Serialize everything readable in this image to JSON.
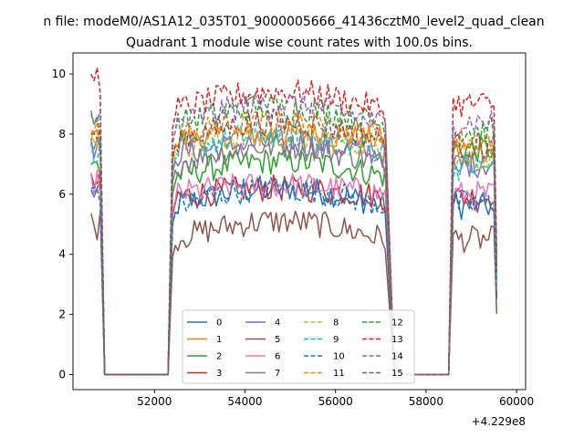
{
  "suptitle": "n file: modeM0/AS1A12_035T01_9000005666_41436cztM0_level2_quad_clean",
  "chart_data": {
    "type": "line",
    "title": "Quadrant 1 module wise count rates with 100.0s bins.",
    "x_offset_label": "+4.229e8",
    "xlim": [
      50200,
      60200
    ],
    "ylim": [
      -0.5,
      10.7
    ],
    "xticks": [
      52000,
      54000,
      56000,
      58000,
      60000
    ],
    "xtick_labels": [
      "52000",
      "54000",
      "56000",
      "58000",
      "60000"
    ],
    "yticks": [
      0,
      2,
      4,
      6,
      8,
      10
    ],
    "ytick_labels": [
      "0",
      "2",
      "4",
      "6",
      "8",
      "10"
    ],
    "grid": false,
    "legend_position": "lower center",
    "segments": [
      {
        "start": 50600,
        "end": 50800
      },
      {
        "start": 52400,
        "end": 57100
      },
      {
        "start": 58600,
        "end": 59500
      }
    ],
    "gap_edges": [
      50900,
      52300,
      57300,
      58500
    ],
    "series": [
      {
        "name": "0",
        "color": "#1f77b4",
        "dash": "solid",
        "level": [
          6.0,
          5.6,
          5.6
        ],
        "trend": [
          0.1,
          0.6,
          0.0
        ]
      },
      {
        "name": "1",
        "color": "#ff7f0e",
        "dash": "solid",
        "level": [
          7.8,
          7.8,
          7.5
        ],
        "trend": [
          0.2,
          0.2,
          0.0
        ]
      },
      {
        "name": "2",
        "color": "#2ca02c",
        "dash": "solid",
        "level": [
          6.8,
          6.6,
          7.5
        ],
        "trend": [
          0.2,
          0.5,
          0.0
        ]
      },
      {
        "name": "3",
        "color": "#d62728",
        "dash": "solid",
        "level": [
          6.3,
          5.9,
          5.9
        ],
        "trend": [
          0.1,
          0.3,
          0.0
        ]
      },
      {
        "name": "4",
        "color": "#9467bd",
        "dash": "solid",
        "level": [
          7.5,
          7.3,
          7.0
        ],
        "trend": [
          0.1,
          0.4,
          0.0
        ]
      },
      {
        "name": "5",
        "color": "#8c564b",
        "dash": "solid",
        "level": [
          5.1,
          4.5,
          4.5
        ],
        "trend": [
          -0.2,
          0.6,
          0.0
        ]
      },
      {
        "name": "6",
        "color": "#e377c2",
        "dash": "solid",
        "level": [
          6.3,
          6.0,
          6.0
        ],
        "trend": [
          0.1,
          0.3,
          0.0
        ]
      },
      {
        "name": "7",
        "color": "#7f7f7f",
        "dash": "solid",
        "level": [
          7.4,
          7.0,
          7.2
        ],
        "trend": [
          0.1,
          0.6,
          0.0
        ]
      },
      {
        "name": "8",
        "color": "#bcbd22",
        "dash": "dashed",
        "level": [
          7.9,
          7.6,
          7.2
        ],
        "trend": [
          0.1,
          0.3,
          0.0
        ]
      },
      {
        "name": "9",
        "color": "#17becf",
        "dash": "dashed",
        "level": [
          7.4,
          7.4,
          6.9
        ],
        "trend": [
          0.1,
          0.6,
          0.0
        ]
      },
      {
        "name": "10",
        "color": "#1f77b4",
        "dash": "dashed",
        "level": [
          6.1,
          5.6,
          5.7
        ],
        "trend": [
          0.1,
          0.6,
          0.0
        ]
      },
      {
        "name": "11",
        "color": "#ff7f0e",
        "dash": "dashed",
        "level": [
          8.1,
          7.9,
          7.8
        ],
        "trend": [
          0.1,
          0.5,
          0.0
        ]
      },
      {
        "name": "12",
        "color": "#2ca02c",
        "dash": "dashed",
        "level": [
          8.4,
          8.3,
          8.1
        ],
        "trend": [
          0.1,
          0.6,
          0.0
        ]
      },
      {
        "name": "13",
        "color": "#d62728",
        "dash": "dashed",
        "level": [
          9.7,
          8.8,
          9.0
        ],
        "trend": [
          0.3,
          0.6,
          0.0
        ]
      },
      {
        "name": "14",
        "color": "#9467bd",
        "dash": "dashed",
        "level": [
          8.6,
          8.3,
          8.4
        ],
        "trend": [
          0.2,
          0.7,
          0.0
        ]
      },
      {
        "name": "15",
        "color": "#8c564b",
        "dash": "dashed",
        "level": [
          7.9,
          7.8,
          7.6
        ],
        "trend": [
          0.1,
          0.6,
          0.0
        ]
      }
    ]
  }
}
